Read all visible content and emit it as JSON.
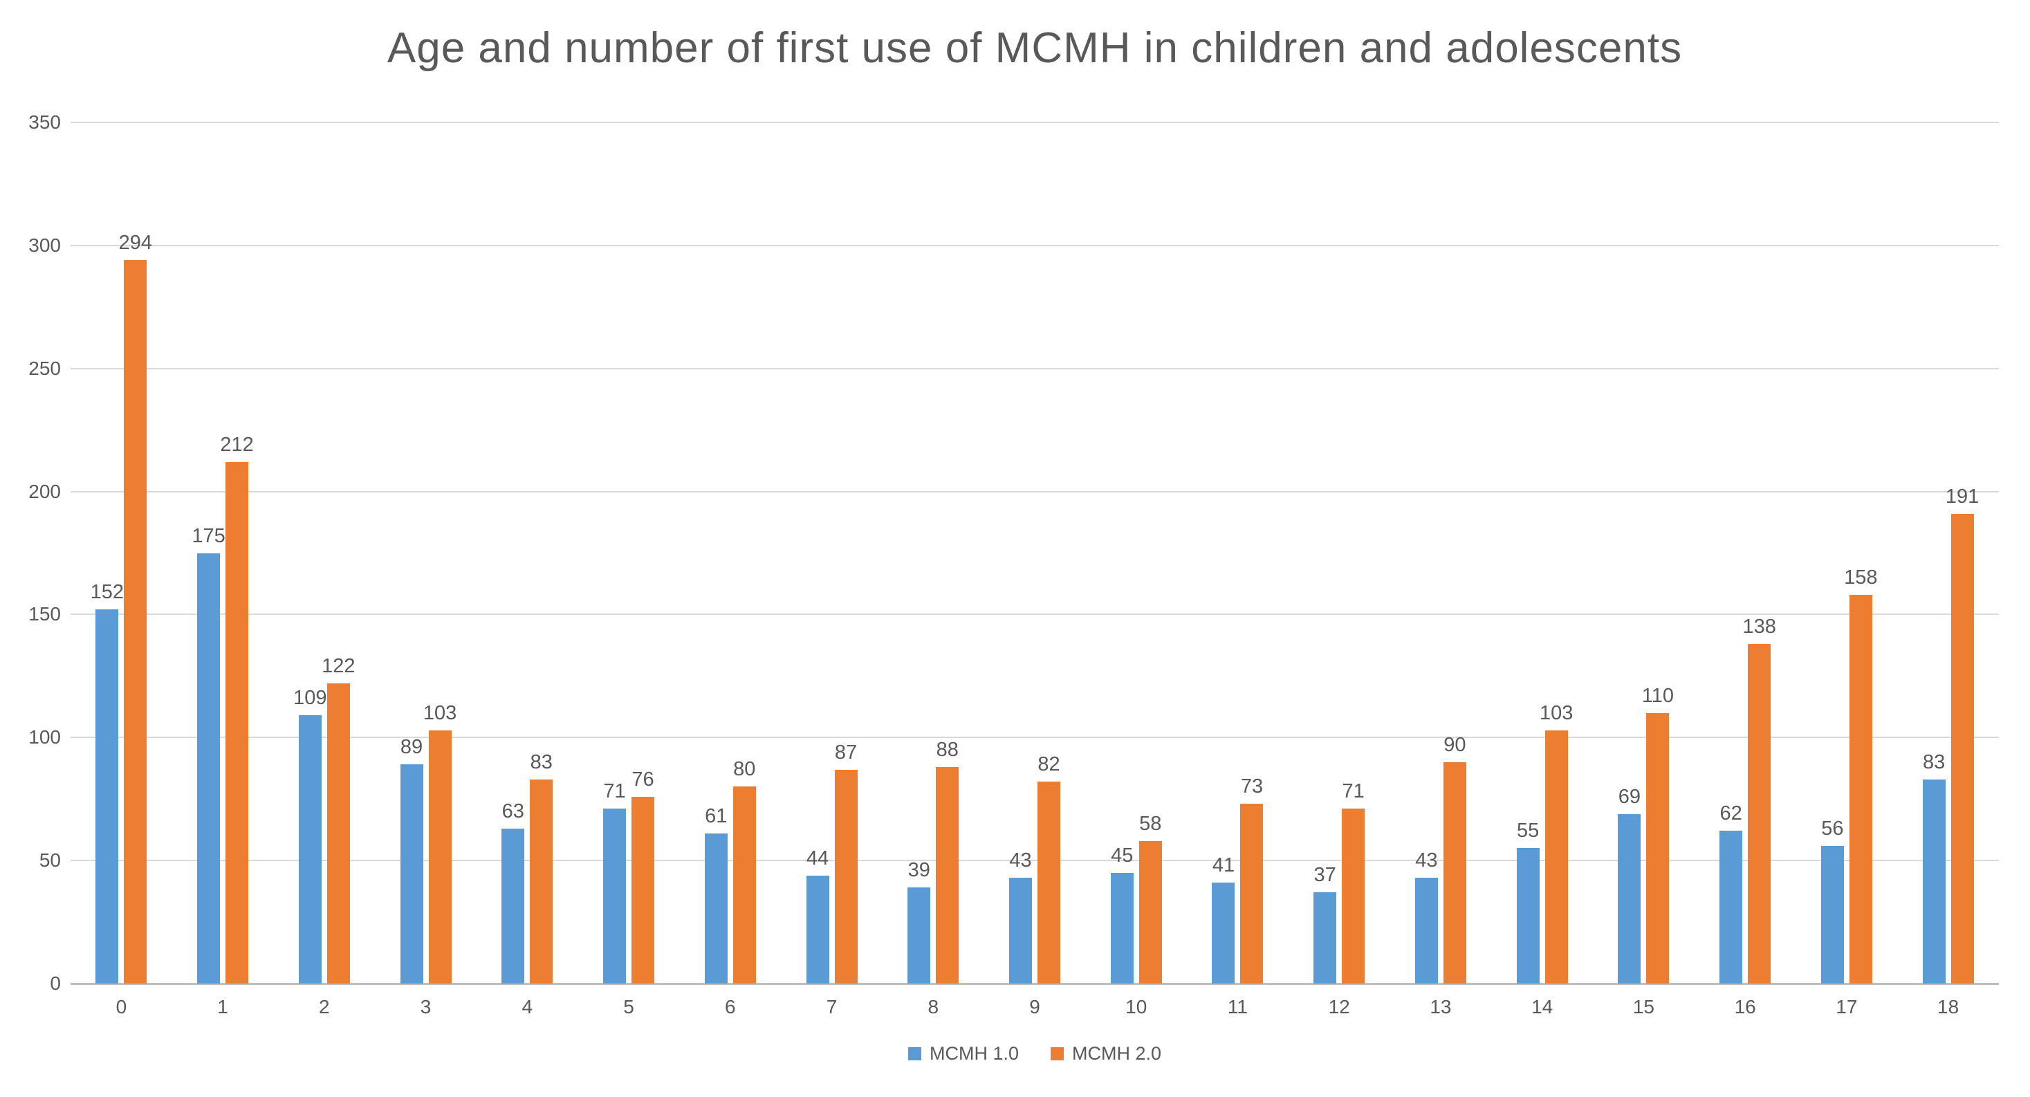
{
  "chart_data": {
    "type": "bar",
    "title": "Age and number of first use of MCMH in children and adolescents",
    "categories": [
      "0",
      "1",
      "2",
      "3",
      "4",
      "5",
      "6",
      "7",
      "8",
      "9",
      "10",
      "11",
      "12",
      "13",
      "14",
      "15",
      "16",
      "17",
      "18"
    ],
    "series": [
      {
        "name": "MCMH 1.0",
        "color": "#5B9BD5",
        "values": [
          152,
          175,
          109,
          89,
          63,
          71,
          61,
          44,
          39,
          43,
          45,
          41,
          37,
          43,
          55,
          69,
          62,
          56,
          83
        ]
      },
      {
        "name": "MCMH 2.0",
        "color": "#ED7D31",
        "values": [
          294,
          212,
          122,
          103,
          83,
          76,
          80,
          87,
          88,
          82,
          58,
          73,
          71,
          90,
          103,
          110,
          138,
          158,
          191
        ]
      }
    ],
    "ylim": [
      0,
      350
    ],
    "yticks": [
      350,
      300,
      250,
      200,
      150,
      100,
      50,
      0
    ],
    "grid": true,
    "data_labels": true,
    "legend_position": "bottom"
  },
  "colors": {
    "background": "#FFFFFF",
    "gridline": "#D9D9D9",
    "axis_line": "#BFBFBF",
    "text": "#595959"
  }
}
